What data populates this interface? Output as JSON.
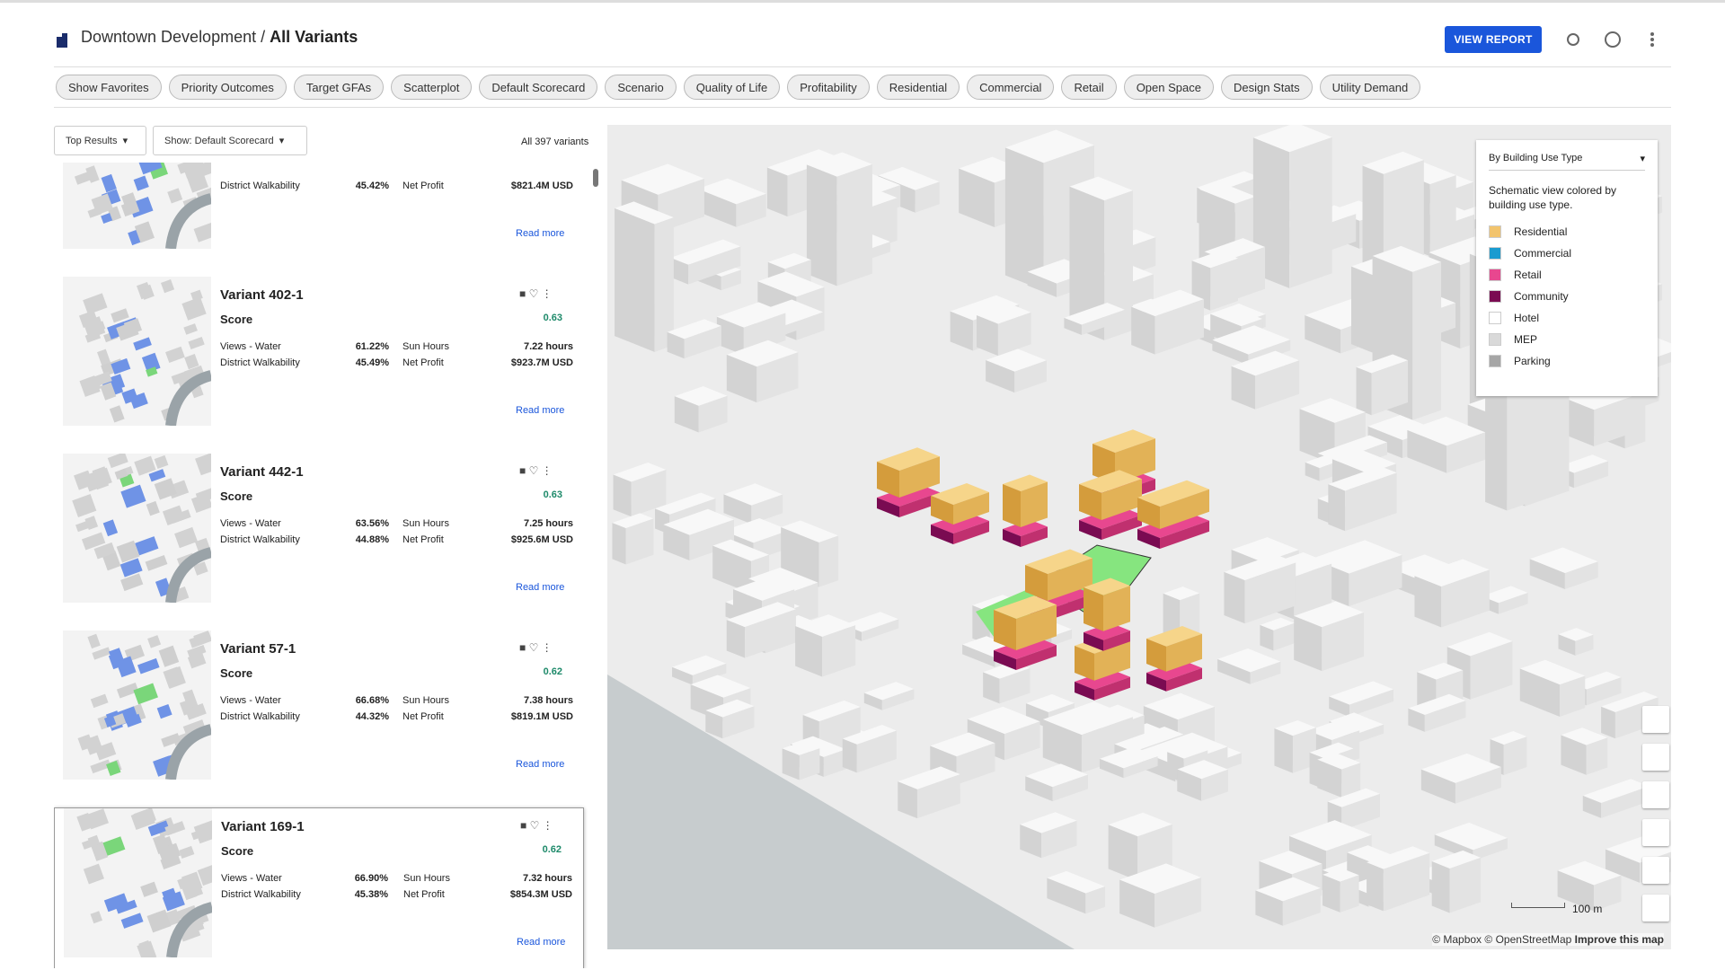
{
  "header": {
    "project": "Downtown Development",
    "separator": "/",
    "page": "All Variants",
    "report_button": "VIEW REPORT"
  },
  "tabs": [
    "Show Favorites",
    "Priority Outcomes",
    "Target GFAs",
    "Scatterplot",
    "Default Scorecard",
    "Scenario",
    "Quality of Life",
    "Profitability",
    "Residential",
    "Commercial",
    "Retail",
    "Open Space",
    "Design Stats",
    "Utility Demand"
  ],
  "controls": {
    "sort": "Top Results",
    "scorecard": "Show: Default Scorecard",
    "count": "All 397 variants"
  },
  "variants": [
    {
      "metrics": [
        [
          "District Walkability",
          "45.42%",
          "Net Profit",
          "$821.4M USD"
        ]
      ],
      "read_more": "Read more"
    },
    {
      "name": "Variant 402-1",
      "score_label": "Score",
      "score": "0.63",
      "metrics": [
        [
          "Views - Water",
          "61.22%",
          "Sun Hours",
          "7.22 hours"
        ],
        [
          "District Walkability",
          "45.49%",
          "Net Profit",
          "$923.7M USD"
        ]
      ],
      "read_more": "Read more"
    },
    {
      "name": "Variant 442-1",
      "score_label": "Score",
      "score": "0.63",
      "metrics": [
        [
          "Views - Water",
          "63.56%",
          "Sun Hours",
          "7.25 hours"
        ],
        [
          "District Walkability",
          "44.88%",
          "Net Profit",
          "$925.6M USD"
        ]
      ],
      "read_more": "Read more"
    },
    {
      "name": "Variant 57-1",
      "score_label": "Score",
      "score": "0.62",
      "metrics": [
        [
          "Views - Water",
          "66.68%",
          "Sun Hours",
          "7.38 hours"
        ],
        [
          "District Walkability",
          "44.32%",
          "Net Profit",
          "$819.1M USD"
        ]
      ],
      "read_more": "Read more"
    },
    {
      "name": "Variant 169-1",
      "score_label": "Score",
      "score": "0.62",
      "metrics": [
        [
          "Views - Water",
          "66.90%",
          "Sun Hours",
          "7.32 hours"
        ],
        [
          "District Walkability",
          "45.38%",
          "Net Profit",
          "$854.3M USD"
        ]
      ],
      "read_more": "Read more"
    }
  ],
  "map": {
    "legend_title": "By Building Use Type",
    "legend_description": "Schematic view colored by building use type.",
    "legend": [
      {
        "label": "Residential",
        "color": "#f2c46d"
      },
      {
        "label": "Commercial",
        "color": "#1a9bd0"
      },
      {
        "label": "Retail",
        "color": "#e8478f"
      },
      {
        "label": "Community",
        "color": "#7a0b52"
      },
      {
        "label": "Hotel",
        "color": "#ffffff"
      },
      {
        "label": "MEP",
        "color": "#d9d9d9"
      },
      {
        "label": "Parking",
        "color": "#a6a6a6"
      }
    ],
    "scale": "100 m",
    "attribution": [
      "© Mapbox",
      "© OpenStreetMap"
    ],
    "improve": "Improve this map"
  }
}
